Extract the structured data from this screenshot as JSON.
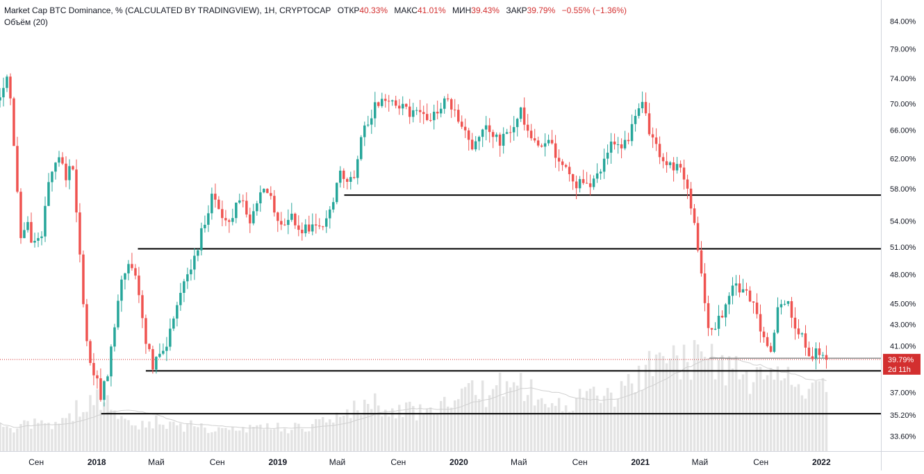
{
  "header": {
    "symbol": "Market Cap BTC Dominance, % (CALCULATED BY TRADINGVIEW), 1H, CRYPTOCAP",
    "open_label": "ОТКР",
    "open_value": "40.33%",
    "high_label": "МАКС",
    "high_value": "41.01%",
    "low_label": "МИН",
    "low_value": "39.43%",
    "close_label": "ЗАКР",
    "close_value": "39.79%",
    "change": "−0.55% (−1.36%)",
    "volume_label": "Объём (20)"
  },
  "colors": {
    "up": "#26a69a",
    "down": "#ef5350",
    "last_price": "#d32f2f",
    "volume": "#e3e3e3",
    "level_line": "#000000"
  },
  "chart_data": {
    "type": "candlestick",
    "y_scale": "log",
    "ylim": [
      32.5,
      88
    ],
    "y_ticks": [
      "84.00%",
      "79.00%",
      "74.00%",
      "70.00%",
      "66.00%",
      "62.00%",
      "58.00%",
      "54.00%",
      "51.00%",
      "48.00%",
      "45.00%",
      "43.00%",
      "41.00%",
      "37.00%",
      "35.20%",
      "33.60%"
    ],
    "x_ticks": [
      {
        "label": "Сен",
        "date": "2017-09",
        "bold": false
      },
      {
        "label": "2018",
        "date": "2018-01",
        "bold": true
      },
      {
        "label": "Май",
        "date": "2018-05",
        "bold": false
      },
      {
        "label": "Сен",
        "date": "2018-09",
        "bold": false
      },
      {
        "label": "2019",
        "date": "2019-01",
        "bold": true
      },
      {
        "label": "Май",
        "date": "2019-05",
        "bold": false
      },
      {
        "label": "Сен",
        "date": "2019-09",
        "bold": false
      },
      {
        "label": "2020",
        "date": "2020-01",
        "bold": true
      },
      {
        "label": "Май",
        "date": "2020-05",
        "bold": false
      },
      {
        "label": "Сен",
        "date": "2020-09",
        "bold": false
      },
      {
        "label": "2021",
        "date": "2021-01",
        "bold": true
      },
      {
        "label": "Май",
        "date": "2021-05",
        "bold": false
      },
      {
        "label": "Сен",
        "date": "2021-09",
        "bold": false
      },
      {
        "label": "2022",
        "date": "2022-01",
        "bold": true
      }
    ],
    "x_range": [
      "2017-06-20",
      "2022-05-01"
    ],
    "last_price": {
      "value": 39.79,
      "label": "39.79%",
      "countdown": "2d 11h"
    },
    "levels": [
      {
        "value": 57.2,
        "start": "2019-05-15",
        "end": "2022-05-01"
      },
      {
        "value": 50.8,
        "start": "2018-03-25",
        "end": "2022-05-01"
      },
      {
        "value": 38.8,
        "start": "2018-04-10",
        "end": "2022-05-01"
      },
      {
        "value": 35.3,
        "start": "2018-01-10",
        "end": "2022-05-01"
      }
    ],
    "minor_levels": [
      {
        "value": 39.9,
        "start": "2021-05-20",
        "end": "2022-05-01"
      }
    ],
    "anchors": [
      [
        "2017-06-20",
        70.5,
        300
      ],
      [
        "2017-07-08",
        74.5,
        250
      ],
      [
        "2017-07-18",
        64.0,
        280
      ],
      [
        "2017-07-30",
        52.5,
        280
      ],
      [
        "2017-08-15",
        53.5,
        290
      ],
      [
        "2017-09-01",
        50.5,
        310
      ],
      [
        "2017-09-15",
        53.5,
        320
      ],
      [
        "2017-09-30",
        60.0,
        300
      ],
      [
        "2017-10-15",
        63.5,
        300
      ],
      [
        "2017-10-30",
        58.5,
        350
      ],
      [
        "2017-11-10",
        63.0,
        420
      ],
      [
        "2017-11-25",
        52.0,
        480
      ],
      [
        "2017-12-10",
        42.0,
        560
      ],
      [
        "2017-12-25",
        38.5,
        600
      ],
      [
        "2018-01-10",
        36.8,
        620
      ],
      [
        "2018-01-22",
        38.0,
        540
      ],
      [
        "2018-02-05",
        43.0,
        470
      ],
      [
        "2018-02-20",
        48.0,
        400
      ],
      [
        "2018-03-05",
        49.0,
        360
      ],
      [
        "2018-03-20",
        47.5,
        330
      ],
      [
        "2018-04-05",
        42.5,
        320
      ],
      [
        "2018-04-25",
        39.2,
        330
      ],
      [
        "2018-05-10",
        40.0,
        330
      ],
      [
        "2018-05-25",
        41.5,
        310
      ],
      [
        "2018-06-10",
        44.0,
        300
      ],
      [
        "2018-06-25",
        46.5,
        290
      ],
      [
        "2018-07-10",
        49.0,
        280
      ],
      [
        "2018-07-25",
        51.5,
        270
      ],
      [
        "2018-08-10",
        55.0,
        270
      ],
      [
        "2018-08-25",
        57.5,
        270
      ],
      [
        "2018-09-10",
        55.0,
        270
      ],
      [
        "2018-09-25",
        54.0,
        260
      ],
      [
        "2018-10-10",
        56.5,
        250
      ],
      [
        "2018-10-25",
        56.0,
        240
      ],
      [
        "2018-11-10",
        54.0,
        260
      ],
      [
        "2018-11-25",
        56.5,
        290
      ],
      [
        "2018-12-10",
        58.0,
        280
      ],
      [
        "2018-12-25",
        55.5,
        270
      ],
      [
        "2019-01-10",
        53.5,
        260
      ],
      [
        "2019-01-25",
        54.5,
        260
      ],
      [
        "2019-02-10",
        53.5,
        260
      ],
      [
        "2019-02-25",
        53.0,
        270
      ],
      [
        "2019-03-10",
        53.0,
        280
      ],
      [
        "2019-03-25",
        52.5,
        300
      ],
      [
        "2019-04-10",
        54.5,
        330
      ],
      [
        "2019-04-25",
        56.5,
        380
      ],
      [
        "2019-05-05",
        60.5,
        430
      ],
      [
        "2019-05-25",
        58.0,
        460
      ],
      [
        "2019-06-05",
        60.5,
        500
      ],
      [
        "2019-06-20",
        65.0,
        520
      ],
      [
        "2019-07-05",
        68.0,
        540
      ],
      [
        "2019-07-20",
        70.5,
        530
      ],
      [
        "2019-08-05",
        70.8,
        510
      ],
      [
        "2019-08-20",
        70.5,
        500
      ],
      [
        "2019-09-05",
        70.0,
        470
      ],
      [
        "2019-09-20",
        68.5,
        460
      ],
      [
        "2019-10-05",
        68.0,
        450
      ],
      [
        "2019-10-20",
        68.5,
        450
      ],
      [
        "2019-11-05",
        68.0,
        460
      ],
      [
        "2019-11-20",
        68.5,
        470
      ],
      [
        "2019-12-05",
        70.5,
        500
      ],
      [
        "2019-12-20",
        69.5,
        530
      ],
      [
        "2020-01-05",
        66.5,
        620
      ],
      [
        "2020-01-20",
        64.5,
        650
      ],
      [
        "2020-02-05",
        63.5,
        640
      ],
      [
        "2020-02-20",
        65.5,
        640
      ],
      [
        "2020-03-05",
        66.5,
        700
      ],
      [
        "2020-03-20",
        64.5,
        740
      ],
      [
        "2020-04-05",
        65.5,
        720
      ],
      [
        "2020-04-20",
        67.0,
        700
      ],
      [
        "2020-05-05",
        68.5,
        760
      ],
      [
        "2020-05-20",
        66.0,
        700
      ],
      [
        "2020-06-05",
        64.5,
        650
      ],
      [
        "2020-06-20",
        64.0,
        600
      ],
      [
        "2020-07-05",
        63.5,
        580
      ],
      [
        "2020-07-20",
        62.0,
        560
      ],
      [
        "2020-08-05",
        60.5,
        540
      ],
      [
        "2020-08-20",
        59.0,
        560
      ],
      [
        "2020-09-05",
        58.5,
        600
      ],
      [
        "2020-09-20",
        58.0,
        640
      ],
      [
        "2020-10-05",
        59.0,
        620
      ],
      [
        "2020-10-20",
        61.5,
        600
      ],
      [
        "2020-11-05",
        64.5,
        620
      ],
      [
        "2020-11-20",
        63.5,
        680
      ],
      [
        "2020-12-05",
        64.0,
        720
      ],
      [
        "2020-12-20",
        68.5,
        800
      ],
      [
        "2021-01-05",
        70.5,
        880
      ],
      [
        "2021-01-20",
        66.0,
        960
      ],
      [
        "2021-02-05",
        63.0,
        1020
      ],
      [
        "2021-02-20",
        61.5,
        1060
      ],
      [
        "2021-03-05",
        61.0,
        1000
      ],
      [
        "2021-03-20",
        62.0,
        960
      ],
      [
        "2021-04-05",
        58.0,
        1000
      ],
      [
        "2021-04-20",
        53.5,
        1060
      ],
      [
        "2021-05-05",
        48.0,
        1120
      ],
      [
        "2021-05-20",
        42.0,
        1100
      ],
      [
        "2021-06-05",
        43.5,
        1000
      ],
      [
        "2021-06-20",
        44.5,
        960
      ],
      [
        "2021-07-05",
        46.5,
        900
      ],
      [
        "2021-07-20",
        46.5,
        860
      ],
      [
        "2021-08-05",
        46.5,
        820
      ],
      [
        "2021-08-20",
        44.0,
        800
      ],
      [
        "2021-09-05",
        41.5,
        820
      ],
      [
        "2021-09-20",
        40.8,
        780
      ],
      [
        "2021-10-05",
        44.0,
        780
      ],
      [
        "2021-10-20",
        45.5,
        780
      ],
      [
        "2021-11-05",
        43.5,
        760
      ],
      [
        "2021-11-20",
        42.0,
        760
      ],
      [
        "2021-12-05",
        40.5,
        760
      ],
      [
        "2021-12-20",
        40.3,
        740
      ],
      [
        "2022-01-05",
        40.0,
        720
      ],
      [
        "2022-01-15",
        39.79,
        700
      ]
    ]
  }
}
